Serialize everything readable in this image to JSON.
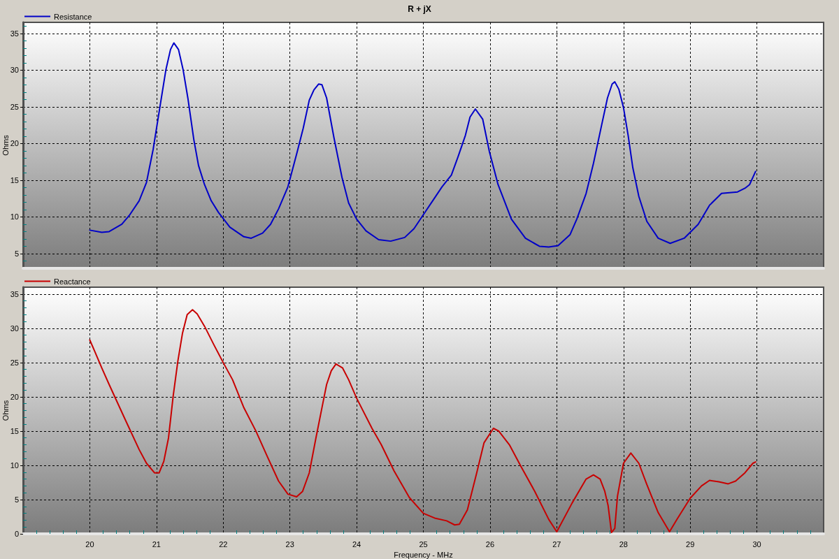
{
  "chart_data": [
    {
      "type": "line",
      "title": "R + jX",
      "ylabel": "Ohms",
      "legend": "top left",
      "grid": true,
      "marker": "none",
      "line_style": "solid",
      "tick_labels": "y",
      "xlim": [
        19,
        31
      ],
      "xticks": [
        20,
        21,
        22,
        23,
        24,
        25,
        26,
        27,
        28,
        29,
        30
      ],
      "ylim": [
        3,
        36.5
      ],
      "yticks": [
        {
          "value": 4,
          "label": null
        },
        5,
        {
          "value": 6,
          "label": null
        },
        {
          "value": 7,
          "label": null
        },
        {
          "value": 8,
          "label": null
        },
        {
          "value": 9,
          "label": null
        },
        10,
        {
          "value": 11,
          "label": null
        },
        {
          "value": 12,
          "label": null
        },
        {
          "value": 13,
          "label": null
        },
        {
          "value": 14,
          "label": null
        },
        15,
        {
          "value": 16,
          "label": null
        },
        {
          "value": 17,
          "label": null
        },
        {
          "value": 18,
          "label": null
        },
        {
          "value": 19,
          "label": null
        },
        20,
        {
          "value": 21,
          "label": null
        },
        {
          "value": 22,
          "label": null
        },
        {
          "value": 23,
          "label": null
        },
        {
          "value": 24,
          "label": null
        },
        25,
        {
          "value": 26,
          "label": null
        },
        {
          "value": 27,
          "label": null
        },
        {
          "value": 28,
          "label": null
        },
        {
          "value": 29,
          "label": null
        },
        30,
        {
          "value": 31,
          "label": null
        },
        {
          "value": 32,
          "label": null
        },
        {
          "value": 33,
          "label": null
        },
        {
          "value": 34,
          "label": null
        },
        35,
        {
          "value": 36,
          "label": null
        }
      ],
      "series": [
        {
          "name": "Resistance",
          "color": "#0000c8",
          "x": [
            20.0,
            20.18,
            20.29,
            20.48,
            20.6,
            20.74,
            20.85,
            20.95,
            21.05,
            21.14,
            21.21,
            21.26,
            21.33,
            21.4,
            21.47,
            21.56,
            21.63,
            21.72,
            21.82,
            21.93,
            22.1,
            22.31,
            22.42,
            22.59,
            22.71,
            22.83,
            22.97,
            23.11,
            23.2,
            23.29,
            23.36,
            23.43,
            23.48,
            23.55,
            23.66,
            23.78,
            23.88,
            24.0,
            24.14,
            24.33,
            24.51,
            24.72,
            24.86,
            25.0,
            25.14,
            25.28,
            25.42,
            25.52,
            25.63,
            25.7,
            25.78,
            25.89,
            25.99,
            26.12,
            26.32,
            26.53,
            26.74,
            26.88,
            27.02,
            27.2,
            27.3,
            27.44,
            27.55,
            27.67,
            27.76,
            27.83,
            27.87,
            27.93,
            28.0,
            28.07,
            28.14,
            28.23,
            28.35,
            28.52,
            28.7,
            28.91,
            29.12,
            29.29,
            29.47,
            29.71,
            29.82,
            29.89,
            29.98
          ],
          "values": [
            8.2,
            7.9,
            8.0,
            9.0,
            10.3,
            12.2,
            14.7,
            19.2,
            24.9,
            30.0,
            32.8,
            33.7,
            32.8,
            30.0,
            26.2,
            20.5,
            17.0,
            14.4,
            12.2,
            10.6,
            8.6,
            7.3,
            7.1,
            7.8,
            9.0,
            11.1,
            14.1,
            18.9,
            22.1,
            25.9,
            27.3,
            28.1,
            28.0,
            26.2,
            20.8,
            15.4,
            11.9,
            9.7,
            8.1,
            6.9,
            6.7,
            7.2,
            8.4,
            10.3,
            12.2,
            14.1,
            15.7,
            18.2,
            21.1,
            23.6,
            24.7,
            23.3,
            18.9,
            14.4,
            9.7,
            7.1,
            6.0,
            5.9,
            6.1,
            7.6,
            9.7,
            13.2,
            17.3,
            22.4,
            26.2,
            28.1,
            28.4,
            27.4,
            24.9,
            21.1,
            16.7,
            12.8,
            9.4,
            7.1,
            6.4,
            7.1,
            9.0,
            11.6,
            13.2,
            13.4,
            13.9,
            14.4,
            16.2
          ]
        }
      ]
    },
    {
      "type": "line",
      "xlabel": "Frequency - MHz",
      "ylabel": "Ohms",
      "legend": "top left",
      "grid": true,
      "marker": "none",
      "line_style": "solid",
      "xlim": [
        19,
        31
      ],
      "xticks": [
        {
          "value": 19.2,
          "label": null
        },
        {
          "value": 19.4,
          "label": null
        },
        {
          "value": 19.6,
          "label": null
        },
        {
          "value": 19.8,
          "label": null
        },
        20,
        {
          "value": 20.2,
          "label": null
        },
        {
          "value": 20.4,
          "label": null
        },
        {
          "value": 20.6,
          "label": null
        },
        {
          "value": 20.8,
          "label": null
        },
        21,
        {
          "value": 21.2,
          "label": null
        },
        {
          "value": 21.4,
          "label": null
        },
        {
          "value": 21.6,
          "label": null
        },
        {
          "value": 21.8,
          "label": null
        },
        22,
        {
          "value": 22.2,
          "label": null
        },
        {
          "value": 22.4,
          "label": null
        },
        {
          "value": 22.6,
          "label": null
        },
        {
          "value": 22.8,
          "label": null
        },
        23,
        {
          "value": 23.2,
          "label": null
        },
        {
          "value": 23.4,
          "label": null
        },
        {
          "value": 23.6,
          "label": null
        },
        {
          "value": 23.8,
          "label": null
        },
        24,
        {
          "value": 24.2,
          "label": null
        },
        {
          "value": 24.4,
          "label": null
        },
        {
          "value": 24.6,
          "label": null
        },
        {
          "value": 24.8,
          "label": null
        },
        25,
        {
          "value": 25.2,
          "label": null
        },
        {
          "value": 25.4,
          "label": null
        },
        {
          "value": 25.6,
          "label": null
        },
        {
          "value": 25.8,
          "label": null
        },
        26,
        {
          "value": 26.2,
          "label": null
        },
        {
          "value": 26.4,
          "label": null
        },
        {
          "value": 26.6,
          "label": null
        },
        {
          "value": 26.8,
          "label": null
        },
        27,
        {
          "value": 27.2,
          "label": null
        },
        {
          "value": 27.4,
          "label": null
        },
        {
          "value": 27.6,
          "label": null
        },
        {
          "value": 27.8,
          "label": null
        },
        28,
        {
          "value": 28.2,
          "label": null
        },
        {
          "value": 28.4,
          "label": null
        },
        {
          "value": 28.6,
          "label": null
        },
        {
          "value": 28.8,
          "label": null
        },
        29,
        {
          "value": 29.2,
          "label": null
        },
        {
          "value": 29.4,
          "label": null
        },
        {
          "value": 29.6,
          "label": null
        },
        {
          "value": 29.8,
          "label": null
        },
        30,
        {
          "value": 30.2,
          "label": null
        },
        {
          "value": 30.4,
          "label": null
        },
        {
          "value": 30.6,
          "label": null
        },
        {
          "value": 30.8,
          "label": null
        }
      ],
      "ylim": [
        0,
        36
      ],
      "yticks": [
        0,
        {
          "value": 1,
          "label": null
        },
        {
          "value": 2,
          "label": null
        },
        {
          "value": 3,
          "label": null
        },
        {
          "value": 4,
          "label": null
        },
        5,
        {
          "value": 6,
          "label": null
        },
        {
          "value": 7,
          "label": null
        },
        {
          "value": 8,
          "label": null
        },
        {
          "value": 9,
          "label": null
        },
        10,
        {
          "value": 11,
          "label": null
        },
        {
          "value": 12,
          "label": null
        },
        {
          "value": 13,
          "label": null
        },
        {
          "value": 14,
          "label": null
        },
        15,
        {
          "value": 16,
          "label": null
        },
        {
          "value": 17,
          "label": null
        },
        {
          "value": 18,
          "label": null
        },
        {
          "value": 19,
          "label": null
        },
        20,
        {
          "value": 21,
          "label": null
        },
        {
          "value": 22,
          "label": null
        },
        {
          "value": 23,
          "label": null
        },
        {
          "value": 24,
          "label": null
        },
        25,
        {
          "value": 26,
          "label": null
        },
        {
          "value": 27,
          "label": null
        },
        {
          "value": 28,
          "label": null
        },
        {
          "value": 29,
          "label": null
        },
        30,
        {
          "value": 31,
          "label": null
        },
        {
          "value": 32,
          "label": null
        },
        {
          "value": 33,
          "label": null
        },
        {
          "value": 34,
          "label": null
        },
        35
      ],
      "series": [
        {
          "name": "Reactance",
          "color": "#c80000",
          "x": [
            20.0,
            20.08,
            20.18,
            20.29,
            20.53,
            20.74,
            20.85,
            20.97,
            21.04,
            21.11,
            21.18,
            21.25,
            21.32,
            21.39,
            21.46,
            21.54,
            21.61,
            21.72,
            21.86,
            22.0,
            22.14,
            22.31,
            22.49,
            22.66,
            22.83,
            22.97,
            23.1,
            23.19,
            23.29,
            23.39,
            23.48,
            23.55,
            23.62,
            23.69,
            23.79,
            23.88,
            24.0,
            24.23,
            24.37,
            24.56,
            24.79,
            25.0,
            25.17,
            25.35,
            25.47,
            25.54,
            25.66,
            25.8,
            25.91,
            26.05,
            26.13,
            26.29,
            26.46,
            26.67,
            26.88,
            27.0,
            27.23,
            27.44,
            27.55,
            27.65,
            27.72,
            27.77,
            27.82,
            27.87,
            27.91,
            28.0,
            28.11,
            28.23,
            28.35,
            28.52,
            28.69,
            28.8,
            29.0,
            29.17,
            29.29,
            29.43,
            29.57,
            29.68,
            29.82,
            29.94,
            29.98
          ],
          "values": [
            28.3,
            26.5,
            24.2,
            21.8,
            16.7,
            12.3,
            10.3,
            8.9,
            8.9,
            10.6,
            14.0,
            20.1,
            25.2,
            29.3,
            32.0,
            32.7,
            32.1,
            30.3,
            27.6,
            25.0,
            22.5,
            18.4,
            15.0,
            11.3,
            7.7,
            5.8,
            5.4,
            6.2,
            8.9,
            14.0,
            18.4,
            21.8,
            23.8,
            24.8,
            24.2,
            22.5,
            19.8,
            15.4,
            13.0,
            9.2,
            5.3,
            3.0,
            2.3,
            1.9,
            1.3,
            1.4,
            3.5,
            8.9,
            13.3,
            15.4,
            15.0,
            13.0,
            9.9,
            6.2,
            2.1,
            0.3,
            4.5,
            8.0,
            8.6,
            8.0,
            6.2,
            4.1,
            0.2,
            0.8,
            5.5,
            10.3,
            11.8,
            10.3,
            7.2,
            3.1,
            0.3,
            2.1,
            5.2,
            7.0,
            7.8,
            7.6,
            7.3,
            7.7,
            8.9,
            10.3,
            10.5
          ]
        }
      ]
    }
  ]
}
